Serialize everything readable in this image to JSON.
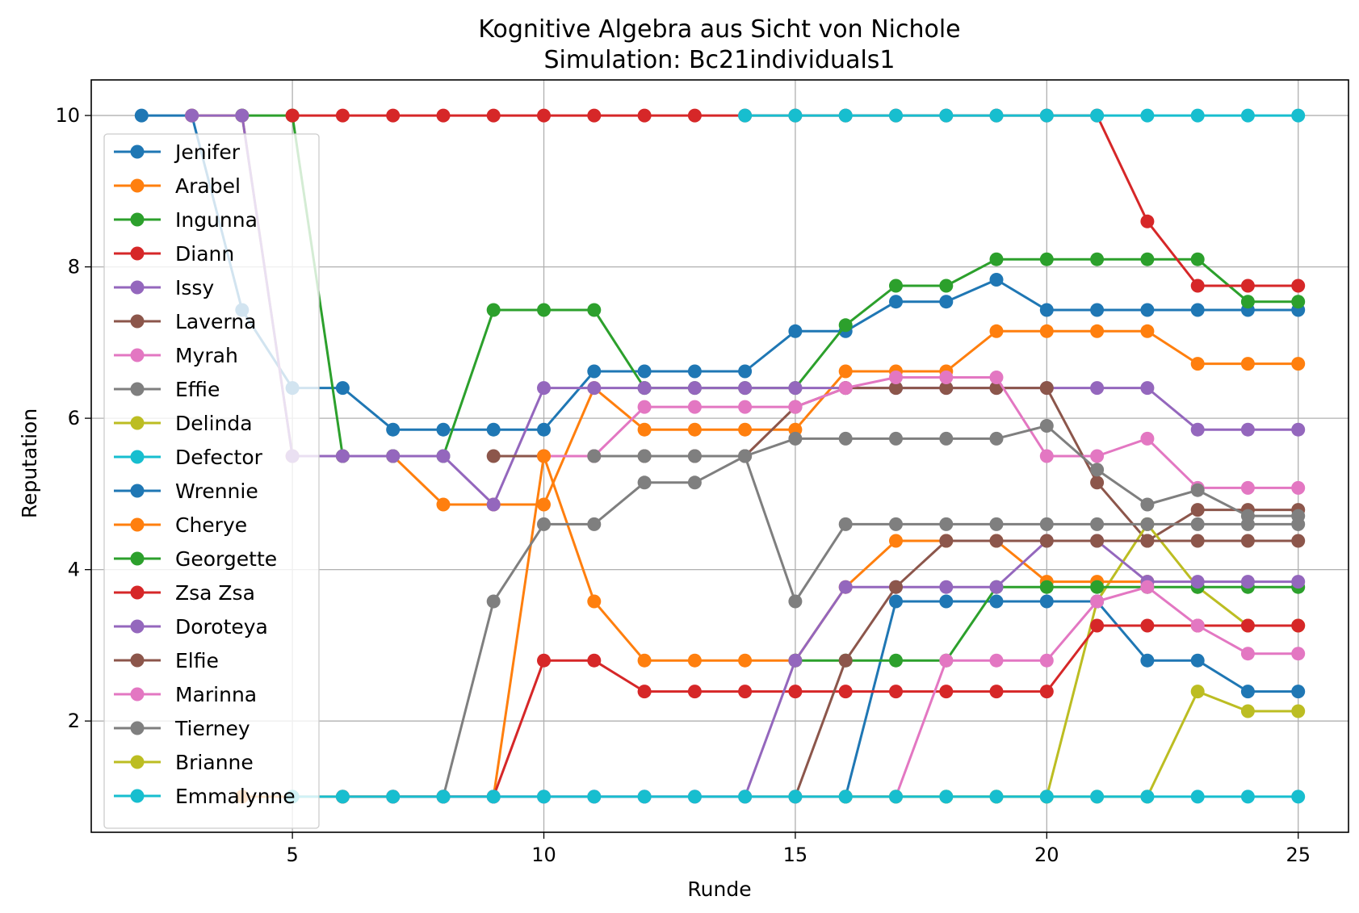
{
  "chart_data": {
    "type": "line",
    "title": "Kognitive Algebra aus Sicht von Nichole",
    "subtitle": "Simulation: Bc21individuals1",
    "xlabel": "Runde",
    "ylabel": "Reputation",
    "xlim": [
      1.0,
      26.0
    ],
    "ylim": [
      0.53,
      10.47
    ],
    "xticks": [
      5,
      10,
      15,
      20,
      25
    ],
    "yticks": [
      2,
      4,
      6,
      8,
      10
    ],
    "grid": true,
    "legend_position": "left",
    "series": [
      {
        "name": "Jenifer",
        "color": "#1f77b4",
        "x": [
          2,
          3,
          4,
          5,
          6,
          7,
          8,
          9,
          10,
          11,
          12,
          13,
          14,
          15,
          16,
          17,
          18,
          19,
          20,
          21,
          22,
          23,
          24,
          25
        ],
        "values": [
          10,
          10,
          7.43,
          6.4,
          6.4,
          5.85,
          5.85,
          5.85,
          5.85,
          6.62,
          6.62,
          6.62,
          6.62,
          7.15,
          7.15,
          7.54,
          7.54,
          7.83,
          7.43,
          7.43,
          7.43,
          7.43,
          7.43,
          7.43
        ]
      },
      {
        "name": "Arabel",
        "color": "#ff7f0e",
        "x": [
          3,
          4,
          5,
          6,
          7,
          8,
          9,
          10,
          11,
          12,
          13,
          14,
          15,
          16,
          17,
          18,
          19,
          20,
          21,
          22,
          23,
          24,
          25
        ],
        "values": [
          10,
          10,
          5.5,
          5.5,
          5.5,
          4.86,
          4.86,
          4.86,
          6.4,
          5.85,
          5.85,
          5.85,
          5.85,
          6.62,
          6.62,
          6.62,
          7.15,
          7.15,
          7.15,
          7.15,
          6.72,
          6.72,
          6.72
        ]
      },
      {
        "name": "Ingunna",
        "color": "#2ca02c",
        "x": [
          4,
          5,
          6,
          7,
          8,
          9,
          10,
          11,
          12,
          13,
          14,
          15,
          16,
          17,
          18,
          19,
          20,
          21,
          22,
          23,
          24,
          25
        ],
        "values": [
          10,
          10,
          5.5,
          5.5,
          5.5,
          7.43,
          7.43,
          7.43,
          6.4,
          6.4,
          6.4,
          6.4,
          7.23,
          7.75,
          7.75,
          8.1,
          8.1,
          8.1,
          8.1,
          8.1,
          7.54,
          7.54
        ]
      },
      {
        "name": "Diann",
        "color": "#d62728",
        "x": [
          5,
          6,
          7,
          8,
          9,
          10,
          11,
          12,
          13,
          14,
          15,
          16,
          17,
          18,
          19,
          20,
          21,
          22,
          23,
          24,
          25
        ],
        "values": [
          10,
          10,
          10,
          10,
          10,
          10,
          10,
          10,
          10,
          10,
          10,
          10,
          10,
          10,
          10,
          10,
          10,
          8.6,
          7.75,
          7.75,
          7.75
        ]
      },
      {
        "name": "Issy",
        "color": "#9467bd",
        "x": [
          3,
          4,
          5,
          6,
          7,
          8,
          9,
          10,
          11,
          12,
          13,
          14,
          15,
          16,
          17,
          18,
          19,
          20,
          21,
          22,
          23,
          24,
          25
        ],
        "values": [
          10,
          10,
          5.5,
          5.5,
          5.5,
          5.5,
          4.86,
          6.4,
          6.4,
          6.4,
          6.4,
          6.4,
          6.4,
          6.4,
          6.4,
          6.4,
          6.4,
          6.4,
          6.4,
          6.4,
          5.85,
          5.85,
          5.85
        ]
      },
      {
        "name": "Laverna",
        "color": "#8c564b",
        "x": [
          9,
          10,
          11,
          12,
          13,
          14,
          15,
          16,
          17,
          18,
          19,
          20,
          21,
          22,
          23,
          24,
          25
        ],
        "values": [
          5.5,
          5.5,
          5.5,
          5.5,
          5.5,
          5.5,
          6.15,
          6.4,
          6.4,
          6.4,
          6.4,
          6.4,
          5.15,
          4.38,
          4.79,
          4.79,
          4.79
        ]
      },
      {
        "name": "Myrah",
        "color": "#e377c2",
        "x": [
          10,
          11,
          12,
          13,
          14,
          15,
          16,
          17,
          18,
          19,
          20,
          21,
          22,
          23,
          24,
          25
        ],
        "values": [
          5.5,
          5.5,
          6.15,
          6.15,
          6.15,
          6.15,
          6.4,
          6.54,
          6.54,
          6.54,
          5.5,
          5.5,
          5.73,
          5.08,
          5.08,
          5.08
        ]
      },
      {
        "name": "Effie",
        "color": "#7f7f7f",
        "x": [
          11,
          12,
          13,
          14,
          15,
          16,
          17,
          18,
          19,
          20,
          21,
          22,
          23,
          24,
          25
        ],
        "values": [
          5.5,
          5.5,
          5.5,
          5.5,
          5.73,
          5.73,
          5.73,
          5.73,
          5.73,
          5.9,
          5.32,
          4.86,
          5.05,
          4.71,
          4.71
        ]
      },
      {
        "name": "Delinda",
        "color": "#bcbd22",
        "x": [
          14,
          15,
          16,
          17,
          18,
          19,
          20,
          21,
          22,
          23,
          24,
          25
        ],
        "values": [
          1,
          1,
          1,
          1,
          1,
          1,
          1,
          3.58,
          4.6,
          3.77,
          3.26,
          3.26
        ]
      },
      {
        "name": "Defector",
        "color": "#17becf",
        "x": [
          14,
          15,
          16,
          17,
          18,
          19,
          20,
          21,
          22,
          23,
          24,
          25
        ],
        "values": [
          10,
          10,
          10,
          10,
          10,
          10,
          10,
          10,
          10,
          10,
          10,
          10
        ]
      },
      {
        "name": "Wrennie",
        "color": "#1f77b4",
        "x": [
          16,
          17,
          18,
          19,
          20,
          21,
          22,
          23,
          24,
          25
        ],
        "values": [
          1,
          3.58,
          3.58,
          3.58,
          3.58,
          3.58,
          2.8,
          2.8,
          2.39,
          2.39
        ]
      },
      {
        "name": "Cherye",
        "color": "#ff7f0e",
        "x": [
          4,
          5,
          6,
          7,
          8,
          9,
          10,
          11,
          12,
          13,
          14,
          15,
          16,
          17,
          18,
          19,
          20,
          21,
          22
        ],
        "values": [
          1,
          1,
          1,
          1,
          1,
          1,
          5.5,
          3.58,
          2.8,
          2.8,
          2.8,
          2.8,
          3.77,
          4.38,
          4.38,
          4.38,
          3.84,
          3.84,
          3.84
        ]
      },
      {
        "name": "Georgette",
        "color": "#2ca02c",
        "x": [
          15,
          16,
          17,
          18,
          19,
          20,
          21,
          22,
          23,
          24,
          25
        ],
        "values": [
          2.8,
          2.8,
          2.8,
          2.8,
          3.77,
          3.77,
          3.77,
          3.77,
          3.77,
          3.77,
          3.77
        ]
      },
      {
        "name": "Zsa Zsa",
        "color": "#d62728",
        "x": [
          6,
          7,
          8,
          9,
          10,
          11,
          12,
          13,
          14,
          15,
          16,
          17,
          18,
          19,
          20,
          21,
          22,
          23,
          24,
          25
        ],
        "values": [
          1,
          1,
          1,
          1,
          2.8,
          2.8,
          2.39,
          2.39,
          2.39,
          2.39,
          2.39,
          2.39,
          2.39,
          2.39,
          2.39,
          3.26,
          3.26,
          3.26,
          3.26,
          3.26
        ]
      },
      {
        "name": "Doroteya",
        "color": "#9467bd",
        "x": [
          7,
          8,
          9,
          10,
          11,
          12,
          13,
          14,
          15,
          16,
          17,
          18,
          19,
          20,
          21,
          22,
          23,
          24,
          25
        ],
        "values": [
          1,
          1,
          1,
          1,
          1,
          1,
          1,
          1,
          2.8,
          3.77,
          3.77,
          3.77,
          3.77,
          4.38,
          4.38,
          3.84,
          3.84,
          3.84,
          3.84
        ]
      },
      {
        "name": "Elfie",
        "color": "#8c564b",
        "x": [
          15,
          16,
          17,
          18,
          19,
          20,
          21,
          22,
          23,
          24,
          25
        ],
        "values": [
          1,
          2.8,
          3.77,
          4.38,
          4.38,
          4.38,
          4.38,
          4.38,
          4.38,
          4.38,
          4.38
        ]
      },
      {
        "name": "Marinna",
        "color": "#e377c2",
        "x": [
          8,
          9,
          10,
          11,
          12,
          13,
          14,
          15,
          16,
          17,
          18,
          19,
          20,
          21,
          22,
          23,
          24,
          25
        ],
        "values": [
          1,
          1,
          1,
          1,
          1,
          1,
          1,
          1,
          1,
          1,
          2.8,
          2.8,
          2.8,
          3.58,
          3.77,
          3.26,
          2.89,
          2.89
        ]
      },
      {
        "name": "Tierney",
        "color": "#7f7f7f",
        "x": [
          8,
          9,
          10,
          11,
          12,
          13,
          14,
          15,
          16,
          17,
          18,
          19,
          20,
          21,
          22,
          23,
          24,
          25
        ],
        "values": [
          1,
          3.58,
          4.6,
          4.6,
          5.15,
          5.15,
          5.5,
          3.58,
          4.6,
          4.6,
          4.6,
          4.6,
          4.6,
          4.6,
          4.6,
          4.6,
          4.6,
          4.6
        ]
      },
      {
        "name": "Brianne",
        "color": "#bcbd22",
        "x": [
          16,
          17,
          18,
          19,
          20,
          21,
          22,
          23,
          24,
          25
        ],
        "values": [
          1,
          1,
          1,
          1,
          1,
          1,
          1,
          2.39,
          2.13,
          2.13
        ]
      },
      {
        "name": "Emmalynne",
        "color": "#17becf",
        "x": [
          5,
          6,
          7,
          8,
          9,
          10,
          11,
          12,
          13,
          14,
          15,
          16,
          17,
          18,
          19,
          20,
          21,
          22,
          23,
          24,
          25
        ],
        "values": [
          1,
          1,
          1,
          1,
          1,
          1,
          1,
          1,
          1,
          1,
          1,
          1,
          1,
          1,
          1,
          1,
          1,
          1,
          1,
          1,
          1
        ]
      }
    ]
  }
}
